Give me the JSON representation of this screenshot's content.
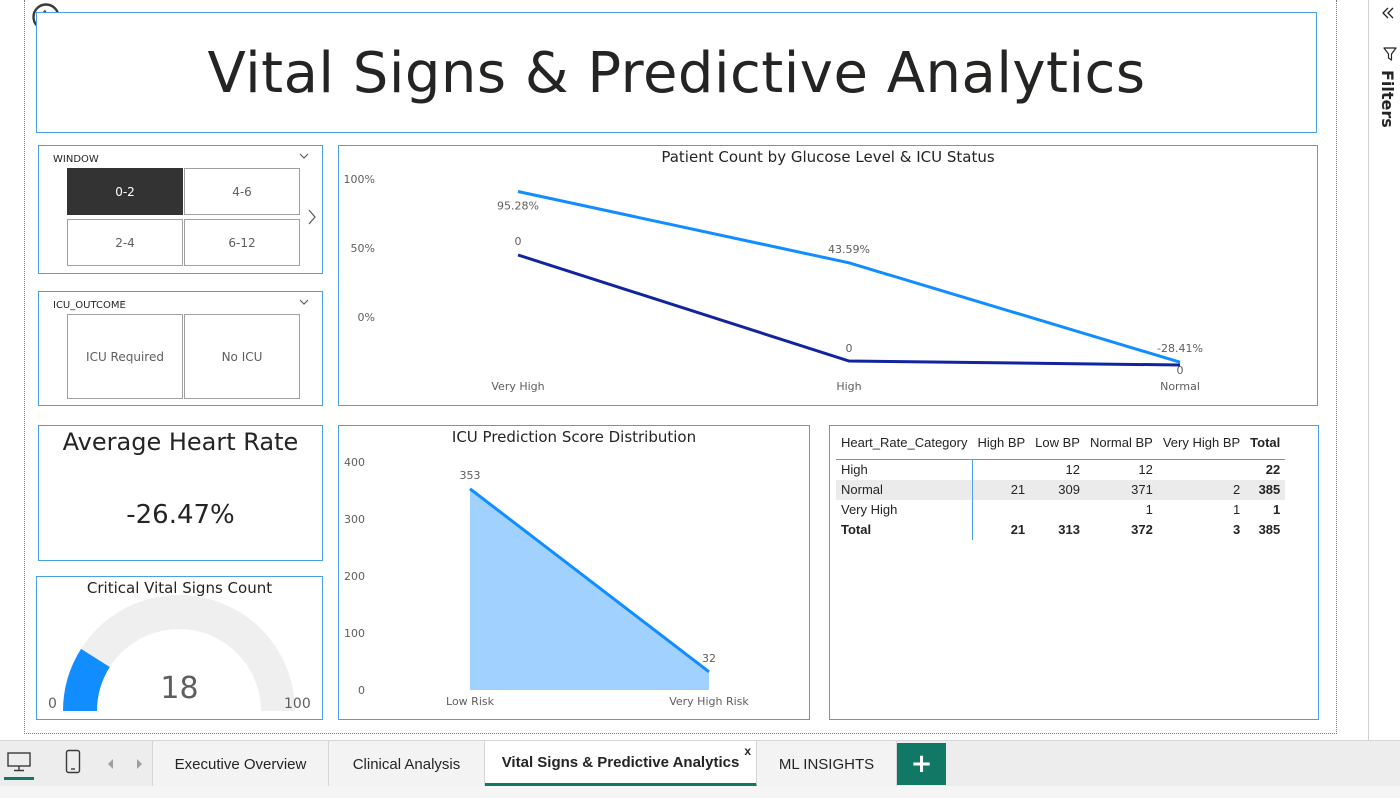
{
  "report": {
    "title": "Vital Signs & Predictive Analytics"
  },
  "slicers": {
    "window": {
      "header": "WINDOW",
      "options": [
        "0-2",
        "4-6",
        "2-4",
        "6-12"
      ],
      "selected": "0-2"
    },
    "icu_outcome": {
      "header": "ICU_OUTCOME",
      "options": [
        "ICU Required",
        "No ICU"
      ]
    }
  },
  "line_chart": {
    "title": "Patient Count by Glucose Level & ICU Status"
  },
  "area_chart": {
    "title": "ICU Prediction Score Distribution"
  },
  "card": {
    "title": "Average Heart Rate",
    "value": "-26.47%"
  },
  "gauge": {
    "title": "Critical Vital Signs Count",
    "value": "18",
    "min_label": "0",
    "max_label": "100",
    "value_num": 18,
    "min": 0,
    "max": 100,
    "fill_color": "#118dff",
    "track_color": "#f0efef"
  },
  "matrix": {
    "columns": [
      "Heart_Rate_Category",
      "High BP",
      "Low BP",
      "Normal BP",
      "Very High BP",
      "Total"
    ],
    "rows": [
      [
        "High",
        "",
        "12",
        "12",
        "",
        "22"
      ],
      [
        "Normal",
        "21",
        "309",
        "371",
        "2",
        "385"
      ],
      [
        "Very High",
        "",
        "",
        "1",
        "1",
        "1"
      ],
      [
        "Total",
        "21",
        "313",
        "372",
        "3",
        "385"
      ]
    ]
  },
  "filters": {
    "label": "Filters"
  },
  "tabs": {
    "pages": [
      "Executive Overview",
      "Clinical Analysis",
      "Vital Signs & Predictive Analytics",
      "ML INSIGHTS"
    ],
    "active": "Vital Signs & Predictive Analytics",
    "close_label": "x",
    "add_label": "+"
  },
  "colors": {
    "accent_border": "#4aa0e6",
    "series_light": "#118dff",
    "series_dark": "#12239e",
    "area_fill": "#a0d1ff",
    "tab_accent": "#117865"
  },
  "chart_data": [
    {
      "type": "line",
      "title": "Patient Count by Glucose Level & ICU Status",
      "categories": [
        "Very High",
        "High",
        "Normal"
      ],
      "y_ticks": [
        "100%",
        "50%",
        "0%"
      ],
      "ylim": [
        0,
        100
      ],
      "series": [
        {
          "values": [
            95.28,
            43.59,
            -28.41
          ],
          "labels": [
            "95.28%",
            "43.59%",
            "-28.41%"
          ],
          "color": "#118dff"
        },
        {
          "values": [
            0,
            0,
            0
          ],
          "labels": [
            "0",
            "0",
            "0"
          ],
          "color": "#12239e"
        }
      ],
      "legend": "none",
      "grid": false
    },
    {
      "type": "area",
      "title": "ICU Prediction Score Distribution",
      "categories": [
        "Low Risk",
        "Very High Risk"
      ],
      "values": [
        353,
        32
      ],
      "labels": [
        "353",
        "32"
      ],
      "y_ticks": [
        "400",
        "300",
        "200",
        "100",
        "0"
      ],
      "ylim": [
        0,
        400
      ],
      "color": "#118dff",
      "fill": "#a0d1ff",
      "grid": false
    }
  ]
}
